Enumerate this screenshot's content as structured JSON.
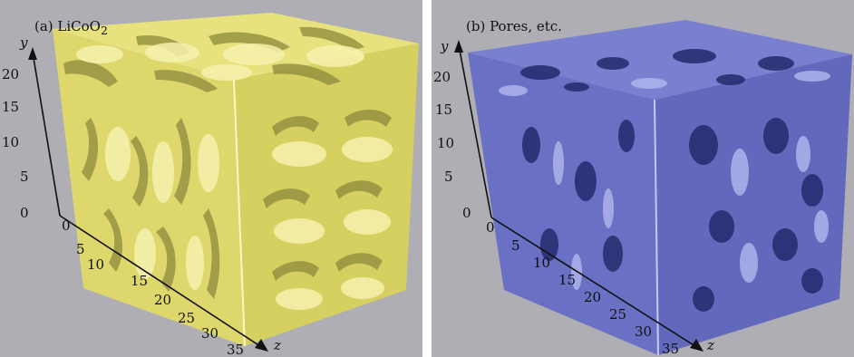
{
  "panels": [
    {
      "id": "a",
      "label_prefix": "(a) LiCoO",
      "label_subscript": "2",
      "material_color": "#e2dc72",
      "highlight_color": "#f6f2ae",
      "shadow_color": "#8d8a3c",
      "y_axis": {
        "name": "y",
        "ticks": [
          "0",
          "5",
          "10",
          "15",
          "20"
        ]
      },
      "z_axis": {
        "name": "z",
        "ticks": [
          "0",
          "5",
          "10",
          "15",
          "20",
          "25",
          "30",
          "35"
        ]
      }
    },
    {
      "id": "b",
      "label_prefix": "(b) Pores, etc.",
      "label_subscript": "",
      "material_color": "#6c72c6",
      "highlight_color": "#b3b8ee",
      "shadow_color": "#343a86",
      "y_axis": {
        "name": "y",
        "ticks": [
          "0",
          "5",
          "10",
          "15",
          "20"
        ]
      },
      "z_axis": {
        "name": "z",
        "ticks": [
          "0",
          "5",
          "10",
          "15",
          "20",
          "25",
          "30",
          "35"
        ]
      }
    }
  ]
}
